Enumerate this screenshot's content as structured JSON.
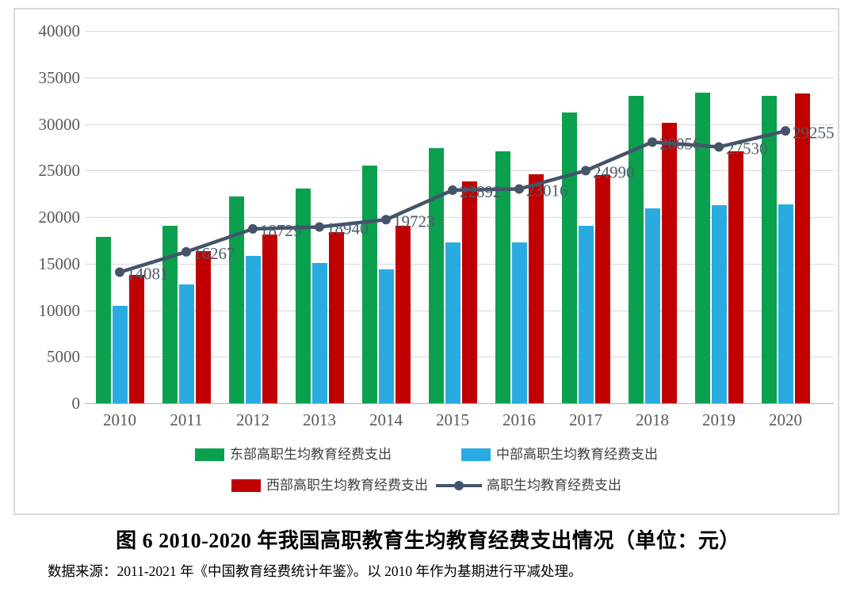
{
  "figure": {
    "title": "图 6  2010-2020 年我国高职教育生均教育经费支出情况（单位：元）",
    "source": "数据来源：2011-2021 年《中国教育经费统计年鉴》。以 2010 年作为基期进行平减处理。"
  },
  "colors": {
    "east": "#0ba04e",
    "central": "#29abe2",
    "west": "#c00000",
    "line": "#44546a",
    "grid": "#d9d9d9",
    "axis": "#b3b3b3",
    "tick_text": "#595959"
  },
  "chart_data": {
    "type": "bar",
    "subtype": "grouped-bars-with-line",
    "categories": [
      "2010",
      "2011",
      "2012",
      "2013",
      "2014",
      "2015",
      "2016",
      "2017",
      "2018",
      "2019",
      "2020"
    ],
    "series": [
      {
        "name": "东部高职生均教育经费支出",
        "type": "bar",
        "color_key": "east",
        "values": [
          17900,
          19100,
          22200,
          23100,
          25500,
          27400,
          27100,
          31200,
          33000,
          33400,
          33000
        ]
      },
      {
        "name": "中部高职生均教育经费支出",
        "type": "bar",
        "color_key": "central",
        "values": [
          10500,
          12800,
          15800,
          15100,
          14400,
          17300,
          17300,
          19100,
          20900,
          21300,
          21400
        ]
      },
      {
        "name": "西部高职生均教育经费支出",
        "type": "bar",
        "color_key": "west",
        "values": [
          13800,
          16300,
          18100,
          18400,
          19100,
          23800,
          24600,
          24500,
          30100,
          27100,
          33300
        ]
      },
      {
        "name": "高职生均教育经费支出",
        "type": "line",
        "color_key": "line",
        "data_labels": true,
        "values": [
          14081,
          16267,
          18729,
          18940,
          19723,
          22892,
          23016,
          24990,
          28056,
          27530,
          29255
        ]
      }
    ],
    "title": "",
    "xlabel": "",
    "ylabel": "",
    "ylim": [
      0,
      40000
    ],
    "ytick_step": 5000,
    "yticks": [
      "0",
      "5000",
      "10000",
      "15000",
      "20000",
      "25000",
      "30000",
      "35000",
      "40000"
    ],
    "grid": "horizontal",
    "legend_position": "bottom"
  }
}
